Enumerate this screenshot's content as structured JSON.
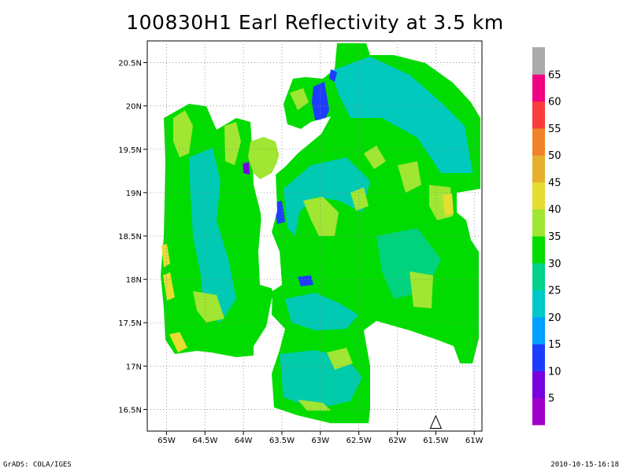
{
  "title": "100830H1 Earl Reflectivity at 3.5 km",
  "footer": {
    "left": "GrADS: COLA/IGES",
    "right": "2010-10-15-16:18"
  },
  "map": {
    "lon_range": [
      -65.25,
      -60.9
    ],
    "lat_range": [
      16.25,
      20.75
    ],
    "x_ticks": [
      {
        "value": -65.0,
        "label": "65W"
      },
      {
        "value": -64.5,
        "label": "64.5W"
      },
      {
        "value": -64.0,
        "label": "64W"
      },
      {
        "value": -63.5,
        "label": "63.5W"
      },
      {
        "value": -63.0,
        "label": "63W"
      },
      {
        "value": -62.5,
        "label": "62.5W"
      },
      {
        "value": -62.0,
        "label": "62W"
      },
      {
        "value": -61.5,
        "label": "61.5W"
      },
      {
        "value": -61.0,
        "label": "61W"
      }
    ],
    "y_ticks": [
      {
        "value": 16.5,
        "label": "16.5N"
      },
      {
        "value": 17.0,
        "label": "17N"
      },
      {
        "value": 17.5,
        "label": "17.5N"
      },
      {
        "value": 18.0,
        "label": "18N"
      },
      {
        "value": 18.5,
        "label": "18.5N"
      },
      {
        "value": 19.0,
        "label": "19N"
      },
      {
        "value": 19.5,
        "label": "19.5N"
      },
      {
        "value": 20.0,
        "label": "20N"
      },
      {
        "value": 20.5,
        "label": "20.5N"
      }
    ],
    "grid": "dotted",
    "storm_marker": {
      "symbol": "triangle",
      "lon": -61.5,
      "lat": 16.3
    }
  },
  "colorbar": {
    "orientation": "vertical",
    "bins": [
      {
        "label": "",
        "color": "#a000c8"
      },
      {
        "label": "5",
        "color": "#7800dc"
      },
      {
        "label": "10",
        "color": "#1e3cff"
      },
      {
        "label": "15",
        "color": "#00a0ff"
      },
      {
        "label": "20",
        "color": "#00c8c8"
      },
      {
        "label": "25",
        "color": "#00d28c"
      },
      {
        "label": "30",
        "color": "#00dc00"
      },
      {
        "label": "35",
        "color": "#a0e632"
      },
      {
        "label": "40",
        "color": "#e6dc32"
      },
      {
        "label": "45",
        "color": "#e6af2d"
      },
      {
        "label": "50",
        "color": "#f08228"
      },
      {
        "label": "55",
        "color": "#fa3c3c"
      },
      {
        "label": "60",
        "color": "#f00082"
      },
      {
        "label": "65",
        "color": "#aaaaaa"
      }
    ]
  },
  "colors": {
    "low": "#1e3cff",
    "mid": "#00c8c8",
    "mid2": "#00d28c",
    "high": "#00dc00",
    "peak": "#a0e632",
    "max": "#e6dc32",
    "core": "#7800dc"
  }
}
